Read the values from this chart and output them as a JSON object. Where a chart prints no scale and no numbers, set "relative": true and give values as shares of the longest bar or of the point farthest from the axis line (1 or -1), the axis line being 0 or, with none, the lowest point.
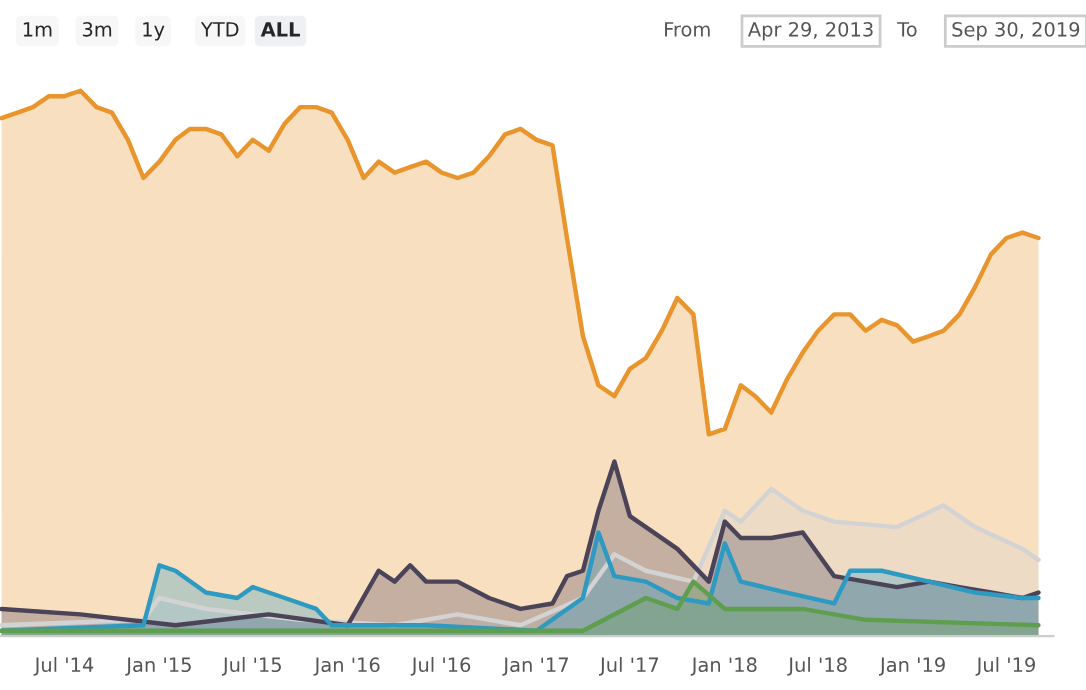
{
  "chart_data": {
    "type": "area",
    "relative": true,
    "x": [
      "2014-03",
      "2014-04",
      "2014-05",
      "2014-06",
      "2014-07",
      "2014-08",
      "2014-09",
      "2014-10",
      "2014-11",
      "2014-12",
      "2015-01",
      "2015-02",
      "2015-03",
      "2015-04",
      "2015-05",
      "2015-06",
      "2015-07",
      "2015-08",
      "2015-09",
      "2015-10",
      "2015-11",
      "2015-12",
      "2016-01",
      "2016-02",
      "2016-03",
      "2016-04",
      "2016-05",
      "2016-06",
      "2016-07",
      "2016-08",
      "2016-09",
      "2016-10",
      "2016-11",
      "2016-12",
      "2017-01",
      "2017-02",
      "2017-03",
      "2017-04",
      "2017-05",
      "2017-06",
      "2017-07",
      "2017-08",
      "2017-09",
      "2017-10",
      "2017-11",
      "2017-12",
      "2018-01",
      "2018-02",
      "2018-03",
      "2018-04",
      "2018-05",
      "2018-06",
      "2018-07",
      "2018-08",
      "2018-09",
      "2018-10",
      "2018-11",
      "2018-12",
      "2019-01",
      "2019-02",
      "2019-03",
      "2019-04",
      "2019-05",
      "2019-06",
      "2019-07",
      "2019-08",
      "2019-09"
    ],
    "series": [
      {
        "color": "#e8952d",
        "values": [
          0.95,
          0.96,
          0.97,
          0.99,
          0.99,
          1.0,
          0.97,
          0.96,
          0.91,
          0.84,
          0.87,
          0.91,
          0.93,
          0.93,
          0.92,
          0.88,
          0.91,
          0.89,
          0.94,
          0.97,
          0.97,
          0.96,
          0.91,
          0.84,
          0.87,
          0.85,
          0.86,
          0.87,
          0.85,
          0.84,
          0.85,
          0.88,
          0.92,
          0.93,
          0.91,
          0.9,
          0.73,
          0.55,
          0.46,
          0.44,
          0.49,
          0.51,
          0.56,
          0.62,
          0.59,
          0.37,
          0.38,
          0.46,
          0.44,
          0.41,
          0.47,
          0.52,
          0.56,
          0.59,
          0.59,
          0.56,
          0.58,
          0.57,
          0.54,
          0.55,
          0.56,
          0.59,
          0.64,
          0.7,
          0.73,
          0.74,
          0.73
        ]
      },
      {
        "color": "#d3d3d3",
        "x": [
          "2014-03",
          "2014-12",
          "2015-01",
          "2015-04",
          "2015-10",
          "2016-04",
          "2016-08",
          "2016-12",
          "2017-04",
          "2017-06",
          "2017-08",
          "2017-11",
          "2018-01",
          "2018-02",
          "2018-04",
          "2018-06",
          "2018-08",
          "2018-12",
          "2019-03",
          "2019-05",
          "2019-08",
          "2019-09"
        ],
        "values": [
          0.02,
          0.03,
          0.07,
          0.05,
          0.03,
          0.02,
          0.04,
          0.02,
          0.07,
          0.15,
          0.12,
          0.1,
          0.23,
          0.21,
          0.27,
          0.23,
          0.21,
          0.2,
          0.24,
          0.2,
          0.16,
          0.14
        ]
      },
      {
        "color": "#4b4358",
        "x": [
          "2014-03",
          "2014-08",
          "2015-02",
          "2015-08",
          "2016-01",
          "2016-03",
          "2016-04",
          "2016-05",
          "2016-06",
          "2016-08",
          "2016-10",
          "2016-12",
          "2017-02",
          "2017-03",
          "2017-04",
          "2017-05",
          "2017-06",
          "2017-07",
          "2017-08",
          "2017-10",
          "2017-12",
          "2018-01",
          "2018-02",
          "2018-04",
          "2018-06",
          "2018-08",
          "2018-10",
          "2018-12",
          "2019-02",
          "2019-04",
          "2019-06",
          "2019-08",
          "2019-09"
        ],
        "values": [
          0.05,
          0.04,
          0.02,
          0.04,
          0.02,
          0.12,
          0.1,
          0.13,
          0.1,
          0.1,
          0.07,
          0.05,
          0.06,
          0.11,
          0.12,
          0.23,
          0.32,
          0.22,
          0.2,
          0.16,
          0.1,
          0.21,
          0.18,
          0.18,
          0.19,
          0.11,
          0.1,
          0.09,
          0.1,
          0.09,
          0.08,
          0.07,
          0.08
        ]
      },
      {
        "color": "#2e9ac2",
        "x": [
          "2014-03",
          "2014-12",
          "2015-01",
          "2015-02",
          "2015-04",
          "2015-06",
          "2015-07",
          "2015-09",
          "2015-11",
          "2015-12",
          "2016-06",
          "2017-01",
          "2017-04",
          "2017-05",
          "2017-06",
          "2017-08",
          "2017-10",
          "2017-12",
          "2018-01",
          "2018-02",
          "2018-05",
          "2018-08",
          "2018-09",
          "2018-11",
          "2019-02",
          "2019-05",
          "2019-08",
          "2019-09"
        ],
        "values": [
          0.01,
          0.02,
          0.13,
          0.12,
          0.08,
          0.07,
          0.09,
          0.07,
          0.05,
          0.02,
          0.02,
          0.01,
          0.07,
          0.19,
          0.11,
          0.1,
          0.07,
          0.06,
          0.17,
          0.1,
          0.08,
          0.06,
          0.12,
          0.12,
          0.1,
          0.08,
          0.07,
          0.07
        ]
      },
      {
        "color": "#5f9e4f",
        "x": [
          "2014-03",
          "2017-04",
          "2017-08",
          "2017-10",
          "2017-11",
          "2018-01",
          "2018-06",
          "2018-10",
          "2019-09"
        ],
        "values": [
          0.01,
          0.01,
          0.07,
          0.05,
          0.1,
          0.05,
          0.05,
          0.03,
          0.02
        ]
      }
    ],
    "xlim": [
      "2014-02-26",
      "2019-09-30"
    ],
    "xticks": [
      {
        "value": "2014-07-01",
        "label": "Jul '14"
      },
      {
        "value": "2015-01-01",
        "label": "Jan '15"
      },
      {
        "value": "2015-07-01",
        "label": "Jul '15"
      },
      {
        "value": "2016-01-01",
        "label": "Jan '16"
      },
      {
        "value": "2016-07-01",
        "label": "Jul '16"
      },
      {
        "value": "2017-01-01",
        "label": "Jan '17"
      },
      {
        "value": "2017-07-01",
        "label": "Jul '17"
      },
      {
        "value": "2018-01-01",
        "label": "Jan '18"
      },
      {
        "value": "2018-07-01",
        "label": "Jul '18"
      },
      {
        "value": "2019-01-01",
        "label": "Jan '19"
      },
      {
        "value": "2019-07-01",
        "label": "Jul '19"
      }
    ],
    "annotations": [
      "1m",
      "3m",
      "1y",
      "YTD",
      "ALL",
      "From",
      "Apr 29, 2013",
      "To",
      "Sep 30, 2019"
    ]
  }
}
